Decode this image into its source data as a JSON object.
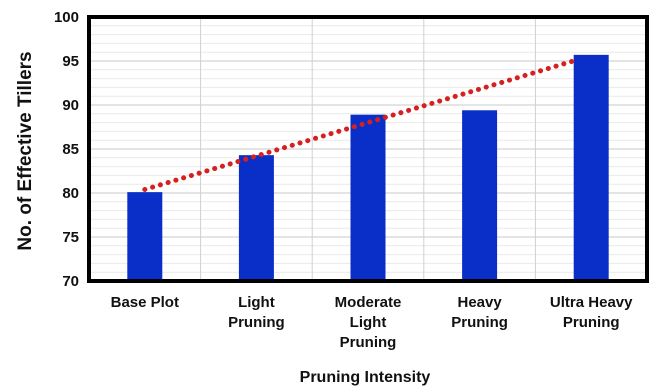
{
  "chart_data": {
    "type": "bar",
    "title": "",
    "xlabel": "Pruning Intensity",
    "ylabel": "No. of Effective Tillers",
    "categories": [
      [
        "Base Plot"
      ],
      [
        "Light",
        "Pruning"
      ],
      [
        "Moderate",
        "Light",
        "Pruning"
      ],
      [
        "Heavy",
        "Pruning"
      ],
      [
        "Ultra Heavy",
        "Pruning"
      ]
    ],
    "values": [
      80.1,
      84.3,
      88.9,
      89.4,
      95.7
    ],
    "ylim": [
      70,
      100
    ],
    "yticks": [
      "70",
      "75",
      "80",
      "85",
      "90",
      "95",
      "100"
    ],
    "trendline": {
      "style": "dotted",
      "type": "linear",
      "start": 80.4,
      "end": 95.0
    },
    "grid": "vertical and horizontal",
    "legend": "none",
    "colors": {
      "bar": "#0a2fc8",
      "trend": "#d62020",
      "grid": "#d0d0d0",
      "frame": "#000000"
    }
  }
}
